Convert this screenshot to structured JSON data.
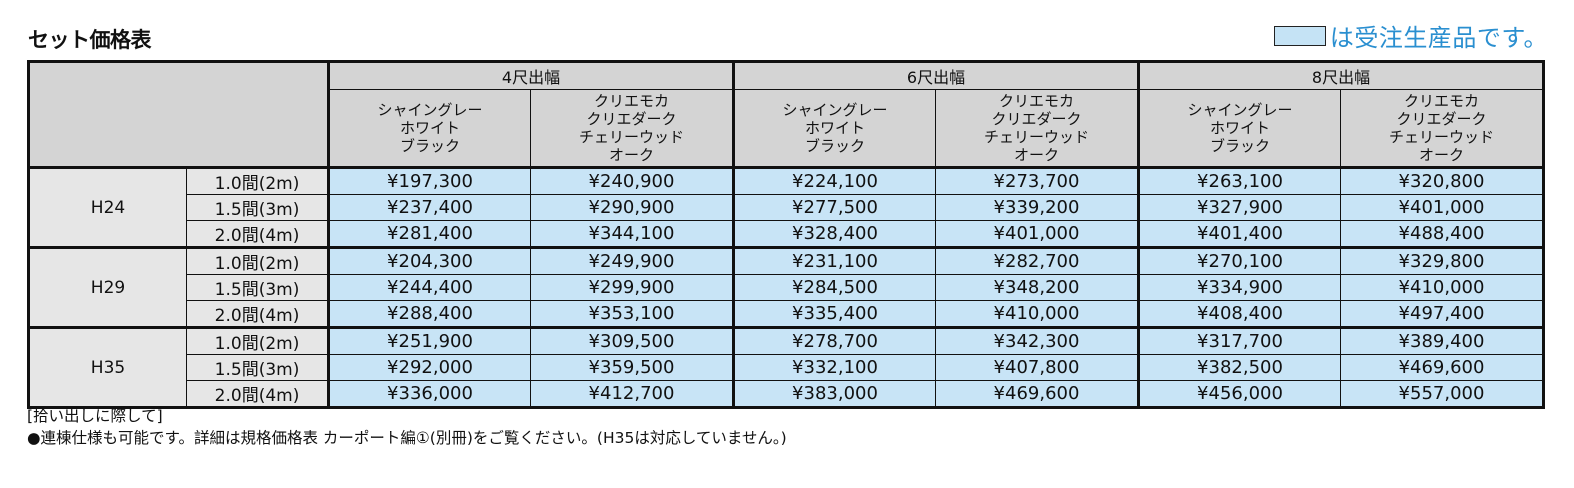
{
  "title": "セット価格表",
  "legend": {
    "swatch_color": "#c5e3f5",
    "text": "は受注生産品です。"
  },
  "table": {
    "width_groups": [
      {
        "label": "4尺出幅"
      },
      {
        "label": "6尺出幅"
      },
      {
        "label": "8尺出幅"
      }
    ],
    "color_groups": [
      {
        "lines": [
          "シャイングレー",
          "ホワイト",
          "ブラック"
        ]
      },
      {
        "lines": [
          "クリエモカ",
          "クリエダーク",
          "チェリーウッド",
          "オーク"
        ]
      }
    ],
    "rows": [
      {
        "height": "H24",
        "sizes": [
          {
            "size": "1.0間(2m)",
            "prices": [
              "¥197,300",
              "¥240,900",
              "¥224,100",
              "¥273,700",
              "¥263,100",
              "¥320,800"
            ]
          },
          {
            "size": "1.5間(3m)",
            "prices": [
              "¥237,400",
              "¥290,900",
              "¥277,500",
              "¥339,200",
              "¥327,900",
              "¥401,000"
            ]
          },
          {
            "size": "2.0間(4m)",
            "prices": [
              "¥281,400",
              "¥344,100",
              "¥328,400",
              "¥401,000",
              "¥401,400",
              "¥488,400"
            ]
          }
        ]
      },
      {
        "height": "H29",
        "sizes": [
          {
            "size": "1.0間(2m)",
            "prices": [
              "¥204,300",
              "¥249,900",
              "¥231,100",
              "¥282,700",
              "¥270,100",
              "¥329,800"
            ]
          },
          {
            "size": "1.5間(3m)",
            "prices": [
              "¥244,400",
              "¥299,900",
              "¥284,500",
              "¥348,200",
              "¥334,900",
              "¥410,000"
            ]
          },
          {
            "size": "2.0間(4m)",
            "prices": [
              "¥288,400",
              "¥353,100",
              "¥335,400",
              "¥410,000",
              "¥408,400",
              "¥497,400"
            ]
          }
        ]
      },
      {
        "height": "H35",
        "sizes": [
          {
            "size": "1.0間(2m)",
            "prices": [
              "¥251,900",
              "¥309,500",
              "¥278,700",
              "¥342,300",
              "¥317,700",
              "¥389,400"
            ]
          },
          {
            "size": "1.5間(3m)",
            "prices": [
              "¥292,000",
              "¥359,500",
              "¥332,100",
              "¥407,800",
              "¥382,500",
              "¥469,600"
            ]
          },
          {
            "size": "2.0間(4m)",
            "prices": [
              "¥336,000",
              "¥412,700",
              "¥383,000",
              "¥469,600",
              "¥456,000",
              "¥557,000"
            ]
          }
        ]
      }
    ]
  },
  "notes": {
    "heading": "[拾い出しに際して]",
    "bullet": "●連棟仕様も可能です。詳細は規格価格表 カーポート編①(別冊)をご覧ください。(H35は対応していません。)"
  }
}
